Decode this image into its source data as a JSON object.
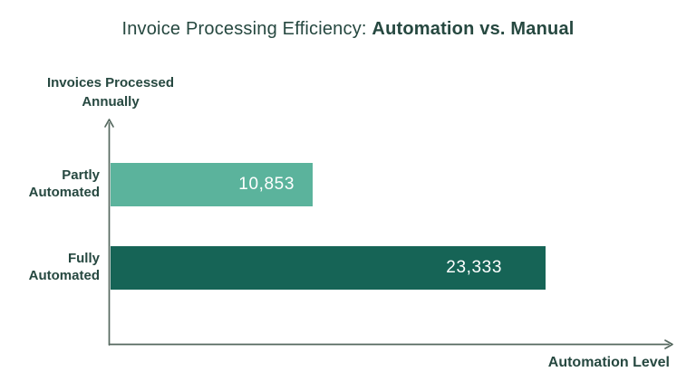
{
  "title": {
    "regular": "Invoice Processing Efficiency: ",
    "bold": "Automation vs. Manual",
    "full": "Invoice Processing Efficiency: Automation vs. Manual"
  },
  "axes": {
    "y_label_line1": "Invoices Processed",
    "y_label_line2": "Annually",
    "x_label": "Automation Level"
  },
  "chart_data": {
    "type": "bar",
    "orientation": "horizontal",
    "title": "Invoice Processing Efficiency: Automation vs. Manual",
    "xlabel": "Automation Level",
    "ylabel": "Invoices Processed Annually",
    "categories": [
      "Partly Automated",
      "Fully Automated"
    ],
    "category_lines": [
      [
        "Partly",
        "Automated"
      ],
      [
        "Fully",
        "Automated"
      ]
    ],
    "values": [
      10853,
      23333
    ],
    "value_labels": [
      "10,853",
      "23,333"
    ],
    "bar_colors": [
      "#5BB39C",
      "#166456"
    ],
    "value_label_color": "#FFFFFF",
    "text_color": "#264840",
    "axis_color": "#55685F",
    "xlim": [
      0,
      23333
    ],
    "grid": false,
    "legend": false
  }
}
